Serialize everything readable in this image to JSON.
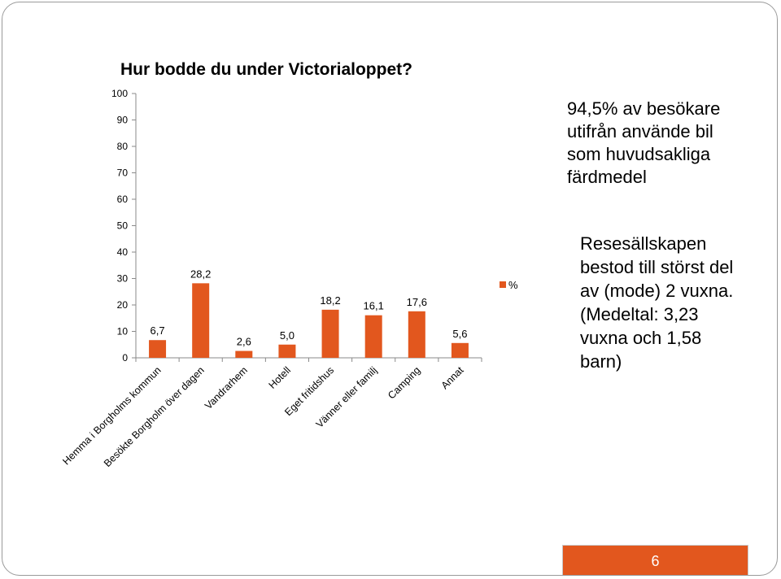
{
  "chart_data": {
    "type": "bar",
    "title": "Hur bodde du under Victorialoppet?",
    "categories": [
      "Hemma i Borgholms kommun",
      "Besökte Borgholm över dagen",
      "Vandrarhem",
      "Hotell",
      "Eget fritidshus",
      "Vänner eller familj",
      "Camping",
      "Annat"
    ],
    "series": [
      {
        "name": "%",
        "values": [
          6.7,
          28.2,
          2.6,
          5.0,
          18.2,
          16.1,
          17.6,
          5.6
        ]
      }
    ],
    "value_labels": [
      "6,7",
      "28,2",
      "2,6",
      "5,0",
      "18,2",
      "16,1",
      "17,6",
      "5,6"
    ],
    "y_ticks": [
      "0",
      "10",
      "20",
      "30",
      "40",
      "50",
      "60",
      "70",
      "80",
      "90",
      "100"
    ],
    "ylim": [
      0,
      100
    ],
    "xlabel": "",
    "ylabel": "",
    "grid": false,
    "legend_position": "right",
    "bar_color": "#e2571e"
  },
  "notes": {
    "transport": "94,5% av besökare\nutifrån använde bil\nsom huvudsakliga\nfärdmedel",
    "company": "Resesällskapen\nbestod till störst del\nav (mode) 2 vuxna.\n(Medeltal: 3,23\nvuxna och 1,58\nbarn)"
  },
  "footer": {
    "page_number": "6",
    "bar_color": "#e2571e"
  }
}
